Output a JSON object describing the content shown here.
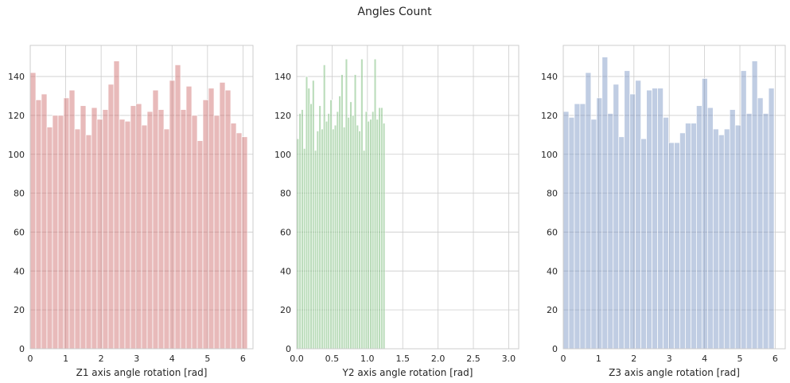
{
  "figure": {
    "title": "Angles Count"
  },
  "chart_data": [
    {
      "type": "bar",
      "xlabel": "Z1 axis angle rotation [rad]",
      "xlim": [
        0,
        6.283
      ],
      "ylim": [
        0,
        156
      ],
      "xticks": [
        0,
        1,
        2,
        3,
        4,
        5,
        6
      ],
      "yticks": [
        0,
        20,
        40,
        60,
        80,
        100,
        120,
        140
      ],
      "color": "#cc6666",
      "bin_start": 0,
      "bin_width": 0.15708,
      "values": [
        142,
        128,
        131,
        114,
        120,
        120,
        129,
        133,
        113,
        125,
        110,
        124,
        118,
        123,
        136,
        148,
        118,
        117,
        125,
        126,
        115,
        122,
        133,
        123,
        113,
        138,
        146,
        123,
        135,
        120,
        107,
        128,
        134,
        120,
        137,
        133,
        116,
        111,
        109
      ],
      "grid": true
    },
    {
      "type": "bar",
      "xlabel": "Y2 axis angle rotation [rad]",
      "xlim": [
        0,
        3.1416
      ],
      "ylim": [
        0,
        156
      ],
      "xticks": [
        0.0,
        0.5,
        1.0,
        1.5,
        2.0,
        2.5,
        3.0
      ],
      "ytick_labels": [
        "0",
        "20",
        "40",
        "60",
        "80",
        "100",
        "120",
        "140"
      ],
      "yticks": [
        0,
        20,
        40,
        60,
        80,
        100,
        120,
        140
      ],
      "color": "#66b266",
      "bin_start": 0,
      "bin_width": 0.03125,
      "values": [
        108,
        121,
        123,
        103,
        140,
        134,
        126,
        138,
        102,
        112,
        125,
        113,
        146,
        117,
        121,
        128,
        113,
        115,
        122,
        130,
        141,
        114,
        149,
        119,
        127,
        120,
        141,
        115,
        112,
        149,
        102,
        122,
        117,
        118,
        122,
        149,
        118,
        124,
        124,
        116
      ],
      "grid": true
    },
    {
      "type": "bar",
      "xlabel": "Z3 axis angle rotation [rad]",
      "xlim": [
        0,
        6.283
      ],
      "ylim": [
        0,
        156
      ],
      "xticks": [
        0,
        1,
        2,
        3,
        4,
        5,
        6
      ],
      "yticks": [
        0,
        20,
        40,
        60,
        80,
        100,
        120,
        140
      ],
      "color": "#7391c2",
      "bin_start": 0,
      "bin_width": 0.15708,
      "values": [
        122,
        119,
        126,
        126,
        142,
        118,
        129,
        150,
        121,
        136,
        109,
        143,
        131,
        138,
        108,
        133,
        134,
        134,
        119,
        106,
        106,
        111,
        116,
        116,
        125,
        139,
        124,
        113,
        110,
        113,
        123,
        115,
        143,
        121,
        148,
        129,
        121,
        134
      ],
      "grid": true
    }
  ]
}
